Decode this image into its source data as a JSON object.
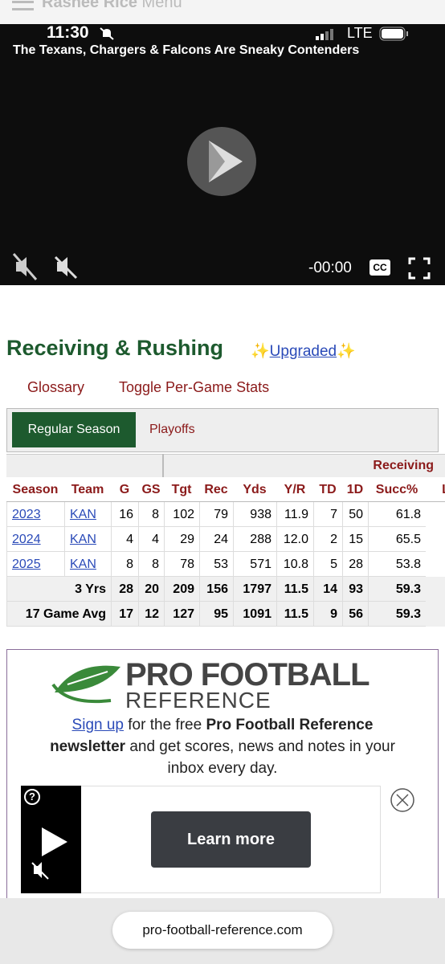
{
  "header": {
    "title": "Rashee Rice",
    "menu": "Menu"
  },
  "status": {
    "time": "11:30",
    "network": "LTE"
  },
  "video": {
    "title": "The Texans, Chargers & Falcons Are Sneaky Contenders",
    "time": "-00:00",
    "cc": "CC"
  },
  "section": {
    "title": "Receiving & Rushing",
    "sparkle": "✨",
    "badge": "Upgraded",
    "links": [
      "Glossary",
      "Toggle Per-Game Stats"
    ],
    "tabs": [
      "Regular Season",
      "Playoffs"
    ]
  },
  "table": {
    "group": "Receiving",
    "columns": [
      "Season",
      "Team",
      "G",
      "GS",
      "Tgt",
      "Rec",
      "Yds",
      "Y/R",
      "TD",
      "1D",
      "Succ%",
      "L"
    ],
    "rows": [
      [
        "2023",
        "KAN",
        "16",
        "8",
        "102",
        "79",
        "938",
        "11.9",
        "7",
        "50",
        "61.8"
      ],
      [
        "2024",
        "KAN",
        "4",
        "4",
        "29",
        "24",
        "288",
        "12.0",
        "2",
        "15",
        "65.5"
      ],
      [
        "2025",
        "KAN",
        "8",
        "8",
        "78",
        "53",
        "571",
        "10.8",
        "5",
        "28",
        "53.8"
      ]
    ],
    "totals": [
      [
        "3 Yrs",
        "28",
        "20",
        "209",
        "156",
        "1797",
        "11.5",
        "14",
        "93",
        "59.3"
      ],
      [
        "17 Game Avg",
        "17",
        "12",
        "127",
        "95",
        "1091",
        "11.5",
        "9",
        "56",
        "59.3"
      ]
    ]
  },
  "ad": {
    "logo_top": "PRO FOOTBALL",
    "logo_bottom": "REFERENCE",
    "text": [
      "Sign up",
      "for the free",
      "Pro Football Reference",
      "newsletter",
      "and get scores, news and notes in your inbox every day."
    ],
    "help": "?",
    "button": "Learn more"
  },
  "url": "pro-football-reference.com"
}
